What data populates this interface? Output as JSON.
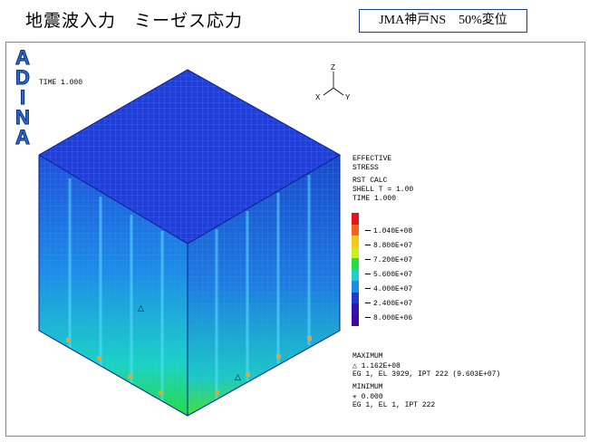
{
  "header": {
    "title": "地震波入力　ミーゼス応力",
    "tag": "JMA神戸NS　50%変位"
  },
  "logo": {
    "letters": [
      "A",
      "D",
      "I",
      "N",
      "A"
    ]
  },
  "plot": {
    "time_label": "TIME 1.000",
    "axes": {
      "z": "Z",
      "x": "X",
      "y": "Y"
    },
    "info": [
      "EFFECTIVE",
      "STRESS",
      "RST CALC",
      "SHELL T = 1.00",
      "TIME 1.000"
    ],
    "legend": {
      "values": [
        "1.040E+08",
        "8.800E+07",
        "7.200E+07",
        "5.600E+07",
        "4.000E+07",
        "2.400E+07",
        "8.000E+06"
      ],
      "colors": [
        "#e8141c",
        "#f4641e",
        "#f5c81e",
        "#c8f01e",
        "#28dc46",
        "#1ed2c8",
        "#1e8ce6",
        "#1e3cd2",
        "#3214b4",
        "#3c0aa0"
      ]
    },
    "maximum": {
      "label": "MAXIMUM",
      "value": "△ 1.162E+08",
      "detail": "EG 1, EL 3929, IPT 222 (9.603E+07)"
    },
    "minimum": {
      "label": "MINIMUM",
      "value": "✳ 0.000",
      "detail": "EG 1, EL 1, IPT 222"
    },
    "palette": {
      "cap": "#1f3fd6",
      "front": "#1e56d8",
      "side": "#1848c8",
      "hot": "#28dc46",
      "warm": "#1ed2c8"
    }
  }
}
